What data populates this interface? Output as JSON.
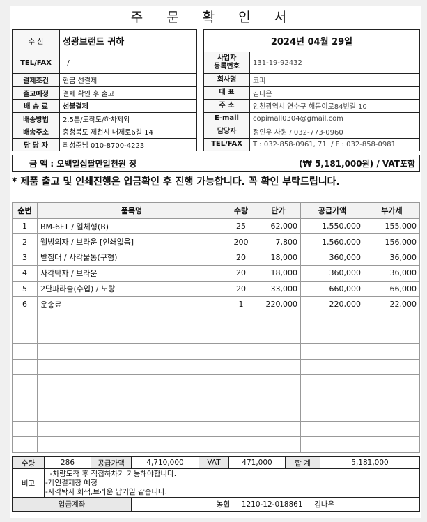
{
  "title": "주 문 확 인 서",
  "recipient": {
    "label": "수 신",
    "value": "성광브랜드 귀하"
  },
  "left_rows": [
    {
      "label": "TEL/FAX",
      "value": "  /"
    },
    {
      "label": "결제조건",
      "value": "현금 선결제"
    },
    {
      "label": "출고예정",
      "value": "결제 확인 후 출고"
    },
    {
      "label": "배 송 료",
      "value": "선불결제"
    },
    {
      "label": "배송방법",
      "value": "2.5톤/도착도/하차제외"
    },
    {
      "label": "배송주소",
      "value": "충청북도 제천시 내제로6길 14"
    },
    {
      "label": "담 당 자",
      "value": "최성준님 010-8700-4223"
    }
  ],
  "date": "2024년 04월 29일",
  "right_rows": [
    {
      "label": "사업자\n등록번호",
      "value": "131-19-92432"
    },
    {
      "label": "회사명",
      "value": "코피"
    },
    {
      "label": "대   표",
      "value": "김나은"
    },
    {
      "label": "주   소",
      "value": "인천광역시 연수구 해돋이로84번길 10"
    },
    {
      "label": "E-mail",
      "value": "copimall0304@gmail.com"
    },
    {
      "label": "담당자",
      "value": "정인우 사원 / 032-773-0960"
    },
    {
      "label": "TEL/FAX",
      "value": "T : 032-858-0961, 71  / F : 032-858-0981"
    }
  ],
  "amount": {
    "text": "금  액 : 오백일십팔만일천원 정",
    "figure": "(₩ 5,181,000원) / VAT포함"
  },
  "notice": "* 제품 출고 및 인쇄진행은 입금확인 후 진행 가능합니다. 꼭 확인 부탁드립니다.",
  "items": {
    "headers": [
      "순번",
      "품목명",
      "수량",
      "단가",
      "공급가액",
      "부가세"
    ],
    "rows": [
      [
        "1",
        "BM-6FT / 일체형(B)",
        "25",
        "62,000",
        "1,550,000",
        "155,000"
      ],
      [
        "2",
        "웰빙의자  /  브라운 [인쇄없음]",
        "200",
        "7,800",
        "1,560,000",
        "156,000"
      ],
      [
        "3",
        "받침대 / 사각물통(구형)",
        "20",
        "18,000",
        "360,000",
        "36,000"
      ],
      [
        "4",
        "사각탁자  /  브라운",
        "20",
        "18,000",
        "360,000",
        "36,000"
      ],
      [
        "5",
        "2단파라솔(수입) / 노랑",
        "20",
        "33,000",
        "660,000",
        "66,000"
      ],
      [
        "6",
        "운송료",
        "1",
        "220,000",
        "220,000",
        "22,000"
      ]
    ]
  },
  "summary": {
    "qty_label": "수량",
    "qty": "286",
    "supply_label": "공급가액",
    "supply": "4,710,000",
    "vat_label": "VAT",
    "vat": "471,000",
    "total_label": "합 계",
    "total": "5,181,000"
  },
  "remarks": {
    "label": "비고",
    "lines": [
      "  -차량도착 후 직접하차가 가능해야합니다.",
      "-개인결제창 예정",
      "-사각탁자 회색,브라운 납기일 같습니다."
    ]
  },
  "account": {
    "label": "입금계좌",
    "value": "농협     1210-12-018861     김나은"
  }
}
